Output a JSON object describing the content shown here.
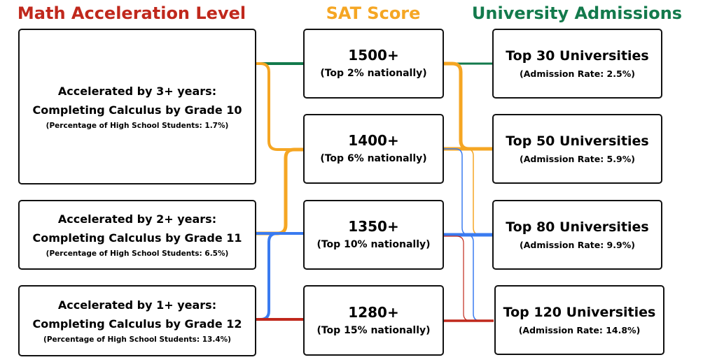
{
  "headers": {
    "math": "Math Acceleration Level",
    "sat": "SAT Score",
    "uni": "University Admissions"
  },
  "colors": {
    "math_header": "#c0281c",
    "sat_header": "#f5a623",
    "uni_header": "#137a4c",
    "flow_green": "#137a4c",
    "flow_orange": "#f5a623",
    "flow_blue": "#3a7bf0",
    "flow_red": "#c0281c"
  },
  "math_levels": [
    {
      "line1": "Accelerated by 3+ years:",
      "line2": "Completing Calculus by Grade 10",
      "note": "(Percentage of High School Students: 1.7%)"
    },
    {
      "line1": "Accelerated by 2+ years:",
      "line2": "Completing Calculus by Grade 11",
      "note": "(Percentage of High School Students: 6.5%)"
    },
    {
      "line1": "Accelerated by 1+ years:",
      "line2": "Completing Calculus by Grade 12",
      "note": "(Percentage of High School Students: 13.4%)"
    }
  ],
  "sat_scores": [
    {
      "score": "1500+",
      "note": "(Top 2% nationally)"
    },
    {
      "score": "1400+",
      "note": "(Top 6% nationally)"
    },
    {
      "score": "1350+",
      "note": "(Top 10% nationally)"
    },
    {
      "score": "1280+",
      "note": "(Top 15% nationally)"
    }
  ],
  "universities": [
    {
      "name": "Top 30 Universities",
      "note": "(Admission Rate: 2.5%)"
    },
    {
      "name": "Top 50 Universities",
      "note": "(Admission Rate: 5.9%)"
    },
    {
      "name": "Top 80 Universities",
      "note": "(Admission Rate: 9.9%)"
    },
    {
      "name": "Top 120 Universities",
      "note": "(Admission Rate: 14.8%)"
    }
  ]
}
